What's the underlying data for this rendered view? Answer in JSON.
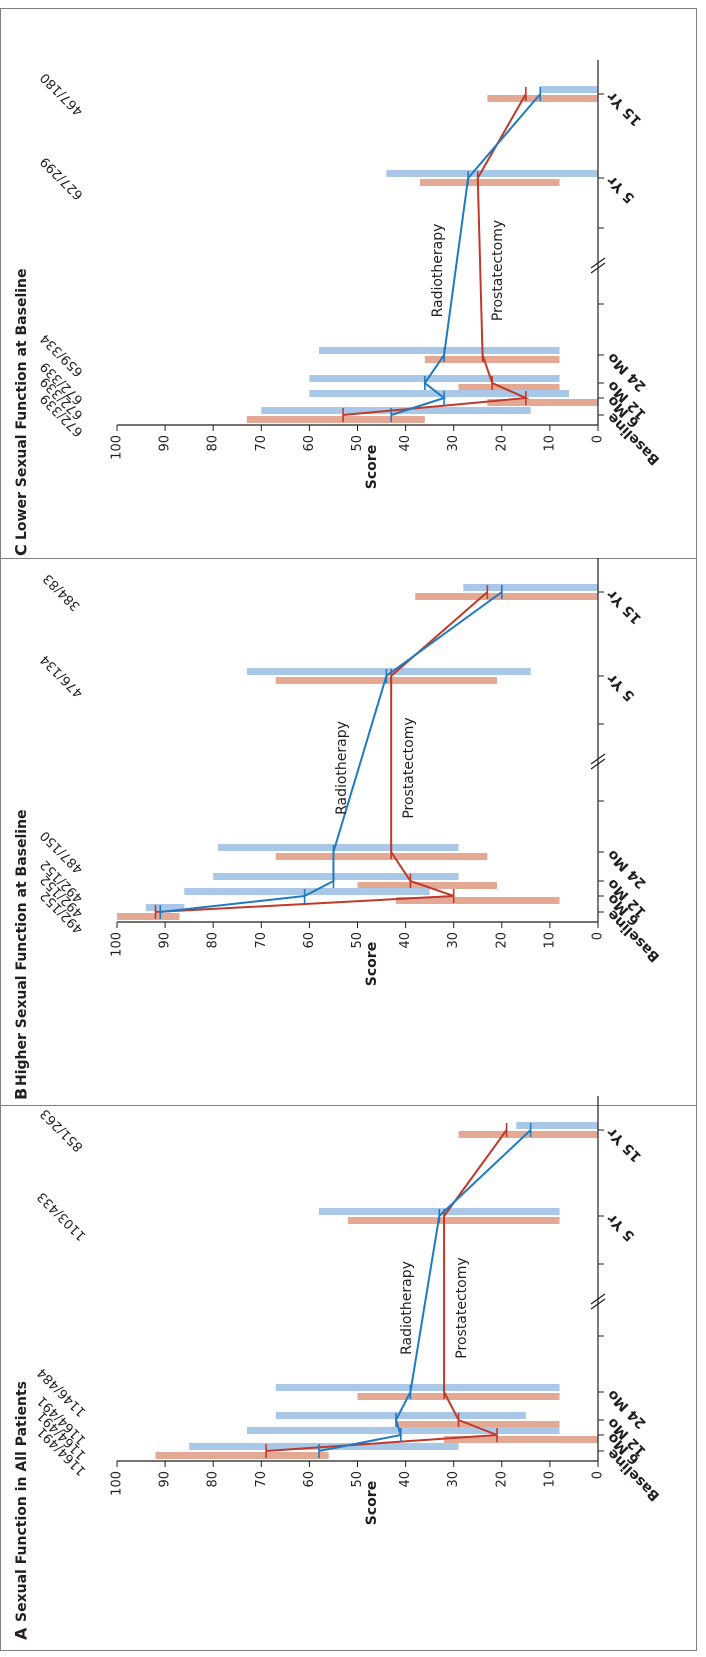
{
  "colors": {
    "prostatectomy_line": "#c0392b",
    "prostatectomy_bar": "#e3a995",
    "radiotherapy_line": "#1f7bbf",
    "radiotherapy_bar": "#a9c7e6",
    "axis": "#231f20",
    "border": "#7f7f7f"
  },
  "chart_data": [
    {
      "type": "line",
      "letter": "A",
      "title": "Sexual Function in All Patients",
      "ylabel": "Score",
      "ylim": [
        0,
        100
      ],
      "yticks": [
        0,
        10,
        20,
        30,
        40,
        50,
        60,
        70,
        80,
        90,
        100
      ],
      "categories": [
        "Baseline",
        "6 Mo",
        "12 Mo",
        "24 Mo",
        "5 Yr",
        "15 Yr"
      ],
      "n_labels": [
        "1164/491",
        "1164/491",
        "1164/491",
        "1146/484",
        "1103/433",
        "851/263"
      ],
      "series": [
        {
          "name": "Prostatectomy",
          "values": [
            {
              "x": 0,
              "y": 69
            },
            {
              "x": 6,
              "y": 21
            },
            {
              "x": 12,
              "y": 29
            },
            {
              "x": 24,
              "y": 32
            },
            {
              "x": 60,
              "y": 32
            },
            {
              "x": 180,
              "y": 19
            }
          ],
          "ranges": [
            {
              "x": 0,
              "low": 56,
              "high": 92
            },
            {
              "x": 6,
              "low": 0,
              "high": 32
            },
            {
              "x": 12,
              "low": 8,
              "high": 42
            },
            {
              "x": 24,
              "low": 8,
              "high": 50
            },
            {
              "x": 60,
              "low": 8,
              "high": 52
            },
            {
              "x": 180,
              "low": 0,
              "high": 29
            }
          ]
        },
        {
          "name": "Radiotherapy",
          "values": [
            {
              "x": 0,
              "y": 58
            },
            {
              "x": 6,
              "y": 41
            },
            {
              "x": 12,
              "y": 42
            },
            {
              "x": 24,
              "y": 39
            },
            {
              "x": 60,
              "y": 33
            },
            {
              "x": 180,
              "y": 14
            }
          ],
          "ranges": [
            {
              "x": 0,
              "low": 29,
              "high": 85
            },
            {
              "x": 6,
              "low": 8,
              "high": 73
            },
            {
              "x": 12,
              "low": 15,
              "high": 67
            },
            {
              "x": 24,
              "low": 8,
              "high": 67
            },
            {
              "x": 60,
              "low": 8,
              "high": 58
            },
            {
              "x": 180,
              "low": 0,
              "high": 17
            }
          ]
        }
      ]
    },
    {
      "type": "line",
      "letter": "B",
      "title": "Higher Sexual Function at Baseline",
      "ylabel": "Score",
      "ylim": [
        0,
        100
      ],
      "yticks": [
        0,
        10,
        20,
        30,
        40,
        50,
        60,
        70,
        80,
        90,
        100
      ],
      "categories": [
        "Baseline",
        "6 Mo",
        "12 Mo",
        "24 Mo",
        "5 Yr",
        "15 Yr"
      ],
      "n_labels": [
        "492/152",
        "492/152",
        "492/152",
        "487/150",
        "476/134",
        "384/83"
      ],
      "series": [
        {
          "name": "Prostatectomy",
          "values": [
            {
              "x": 0,
              "y": 92
            },
            {
              "x": 6,
              "y": 30
            },
            {
              "x": 12,
              "y": 39
            },
            {
              "x": 24,
              "y": 43
            },
            {
              "x": 60,
              "y": 43
            },
            {
              "x": 180,
              "y": 23
            }
          ],
          "ranges": [
            {
              "x": 0,
              "low": 87,
              "high": 100
            },
            {
              "x": 6,
              "low": 8,
              "high": 42
            },
            {
              "x": 12,
              "low": 21,
              "high": 50
            },
            {
              "x": 24,
              "low": 23,
              "high": 67
            },
            {
              "x": 60,
              "low": 21,
              "high": 67
            },
            {
              "x": 180,
              "low": 0,
              "high": 38
            }
          ]
        },
        {
          "name": "Radiotherapy",
          "values": [
            {
              "x": 0,
              "y": 91
            },
            {
              "x": 6,
              "y": 61
            },
            {
              "x": 12,
              "y": 55
            },
            {
              "x": 24,
              "y": 55
            },
            {
              "x": 60,
              "y": 44
            },
            {
              "x": 180,
              "y": 20
            }
          ],
          "ranges": [
            {
              "x": 0,
              "low": 86,
              "high": 94
            },
            {
              "x": 6,
              "low": 35,
              "high": 86
            },
            {
              "x": 12,
              "low": 29,
              "high": 80
            },
            {
              "x": 24,
              "low": 29,
              "high": 79
            },
            {
              "x": 60,
              "low": 14,
              "high": 73
            },
            {
              "x": 180,
              "low": 0,
              "high": 28
            }
          ]
        }
      ]
    },
    {
      "type": "line",
      "letter": "C",
      "title": "Lower Sexual Function at Baseline",
      "ylabel": "Score",
      "ylim": [
        0,
        100
      ],
      "yticks": [
        0,
        10,
        20,
        30,
        40,
        50,
        60,
        70,
        80,
        90,
        100
      ],
      "categories": [
        "Baseline",
        "6 Mo",
        "12 Mo",
        "24 Mo",
        "5 Yr",
        "15 Yr"
      ],
      "n_labels": [
        "672/339",
        "672/339",
        "672/339",
        "659/334",
        "627/299",
        "467/180"
      ],
      "series": [
        {
          "name": "Prostatectomy",
          "values": [
            {
              "x": 0,
              "y": 53
            },
            {
              "x": 6,
              "y": 15
            },
            {
              "x": 12,
              "y": 22
            },
            {
              "x": 24,
              "y": 24
            },
            {
              "x": 60,
              "y": 25
            },
            {
              "x": 180,
              "y": 15
            }
          ],
          "ranges": [
            {
              "x": 0,
              "low": 36,
              "high": 73
            },
            {
              "x": 6,
              "low": 0,
              "high": 23
            },
            {
              "x": 12,
              "low": 8,
              "high": 29
            },
            {
              "x": 24,
              "low": 8,
              "high": 36
            },
            {
              "x": 60,
              "low": 8,
              "high": 37
            },
            {
              "x": 180,
              "low": 0,
              "high": 23
            }
          ]
        },
        {
          "name": "Radiotherapy",
          "values": [
            {
              "x": 0,
              "y": 43
            },
            {
              "x": 6,
              "y": 32
            },
            {
              "x": 12,
              "y": 36
            },
            {
              "x": 24,
              "y": 32
            },
            {
              "x": 60,
              "y": 27
            },
            {
              "x": 180,
              "y": 12
            }
          ],
          "ranges": [
            {
              "x": 0,
              "low": 14,
              "high": 70
            },
            {
              "x": 6,
              "low": 6,
              "high": 60
            },
            {
              "x": 12,
              "low": 8,
              "high": 60
            },
            {
              "x": 24,
              "low": 8,
              "high": 58
            },
            {
              "x": 60,
              "low": 0,
              "high": 44
            },
            {
              "x": 180,
              "low": 0,
              "high": 12
            }
          ]
        }
      ]
    }
  ]
}
